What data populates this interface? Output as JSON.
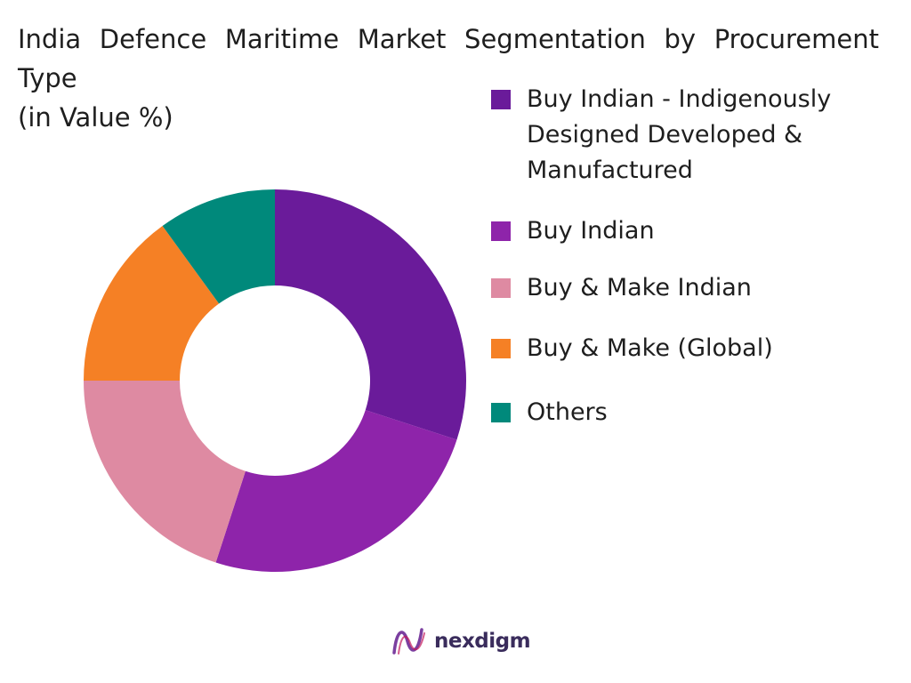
{
  "chart_data": {
    "type": "pie",
    "title": "India Defence Maritime Market Segmentation by Procurement Type",
    "subtitle": "(in Value %)",
    "categories": [
      "Buy Indian - Indigenously Designed Developed & Manufactured",
      "Buy Indian",
      "Buy & Make Indian",
      "Buy & Make (Global)",
      "Others"
    ],
    "values": [
      30,
      25,
      20,
      15,
      10
    ],
    "colors": [
      "#6a1b9a",
      "#8e24aa",
      "#de8aa2",
      "#f58025",
      "#00897b"
    ],
    "legend_position": "right"
  },
  "branding": {
    "logo_text": "nexdigm",
    "logo_colors": [
      "#7b3fa0",
      "#c2185b"
    ]
  }
}
